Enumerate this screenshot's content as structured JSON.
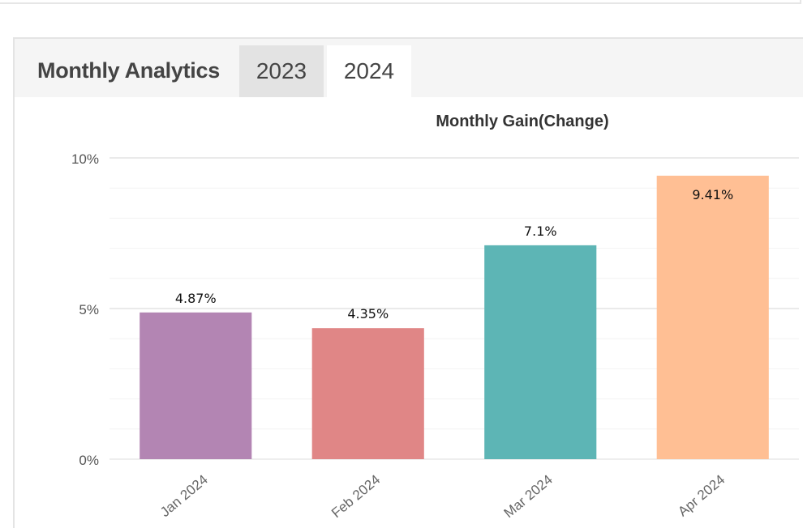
{
  "panel": {
    "title": "Monthly Analytics",
    "tabs": [
      {
        "label": "2023",
        "selected": false
      },
      {
        "label": "2024",
        "selected": true
      }
    ]
  },
  "chart_data": {
    "type": "bar",
    "title": "Monthly Gain(Change)",
    "xlabel": "",
    "ylabel": "",
    "ylim": [
      0,
      10
    ],
    "yticks": [
      0,
      5,
      10
    ],
    "ytick_labels": [
      "0%",
      "5%",
      "10%"
    ],
    "categories": [
      "Jan 2024",
      "Feb 2024",
      "Mar 2024",
      "Apr 2024"
    ],
    "values": [
      4.87,
      4.35,
      7.1,
      9.41
    ],
    "data_labels": [
      "4.87%",
      "4.35%",
      "7.1%",
      "9.41%"
    ],
    "colors": [
      "#b385b3",
      "#e08686",
      "#5db5b5",
      "#ffbf94"
    ],
    "grid": true,
    "legend": "none"
  }
}
